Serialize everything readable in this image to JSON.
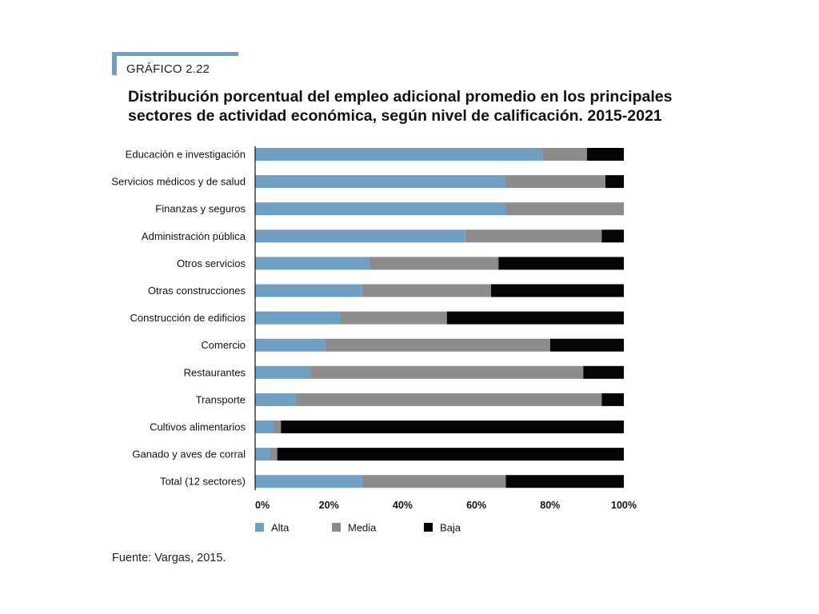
{
  "header": {
    "label": "GRÁFICO 2.22",
    "title_line1": "Distribución porcentual del empleo adicional promedio en los principales",
    "title_line2": "sectores de actividad económica, según nivel de calificación. 2015-2021"
  },
  "source": "Fuente: Vargas, 2015.",
  "colors": {
    "accent": "#6fa0c4",
    "alta": "#6fa0c4",
    "media": "#8c8c8c",
    "baja": "#050505"
  },
  "chart_data": {
    "type": "bar",
    "orientation": "horizontal",
    "stacked": true,
    "categories": [
      "Educación e investigación",
      "Servicios médicos y de salud",
      "Finanzas y seguros",
      "Administración pública",
      "Otros servicios",
      "Otras construcciones",
      "Construcción de edificios",
      "Comercio",
      "Restaurantes",
      "Transporte",
      "Cultivos alimentarios",
      "Ganado y aves de corral",
      "Total (12 sectores)"
    ],
    "series": [
      {
        "name": "Alta",
        "color": "#6fa0c4",
        "values": [
          78,
          68,
          68,
          57,
          31,
          29,
          23,
          19,
          15,
          11,
          5,
          4,
          29
        ]
      },
      {
        "name": "Media",
        "color": "#8c8c8c",
        "values": [
          12,
          27,
          32,
          37,
          35,
          35,
          29,
          61,
          74,
          83,
          2,
          2,
          39
        ]
      },
      {
        "name": "Baja",
        "color": "#050505",
        "values": [
          10,
          5,
          0,
          6,
          34,
          36,
          48,
          20,
          11,
          6,
          93,
          94,
          32
        ]
      }
    ],
    "xlim": [
      0,
      100
    ],
    "x_ticks": [
      "0%",
      "20%",
      "40%",
      "60%",
      "80%",
      "100%"
    ],
    "grid": false,
    "legend_position": "bottom-left"
  }
}
